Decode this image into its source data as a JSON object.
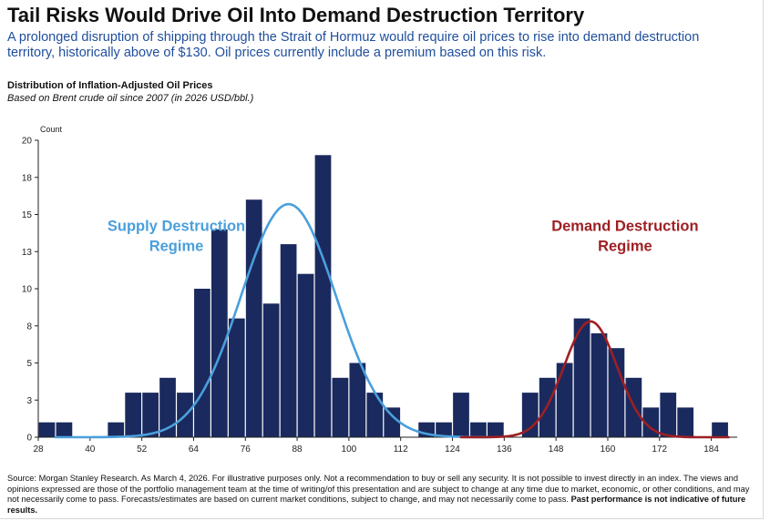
{
  "header": {
    "title": "Tail Risks Would Drive Oil Into Demand Destruction Territory",
    "subtitle": "A prolonged disruption of shipping through the Strait of Hormuz would require oil prices to rise into demand destruction territory, historically above of $130. Oil prices currently include a premium based on this risk."
  },
  "chart_data": {
    "type": "bar",
    "title": "Distribution of Inflation-Adjusted Oil Prices",
    "subtitle": "Based on Brent crude oil since 2007 (in 2026 USD/bbl.)",
    "ylabel": "Count",
    "xlabel": "",
    "ylim": [
      0,
      20
    ],
    "xlim": [
      28,
      190
    ],
    "bin_width": 4,
    "x_ticks": [
      28,
      40,
      52,
      64,
      76,
      88,
      100,
      112,
      124,
      136,
      148,
      160,
      172,
      184
    ],
    "y_ticks": [
      {
        "value": 0,
        "label": "0"
      },
      {
        "value": 2.5,
        "label": "3"
      },
      {
        "value": 5,
        "label": "5"
      },
      {
        "value": 7.5,
        "label": "8"
      },
      {
        "value": 10,
        "label": "10"
      },
      {
        "value": 12.5,
        "label": "13"
      },
      {
        "value": 15,
        "label": "15"
      },
      {
        "value": 17.5,
        "label": "18"
      },
      {
        "value": 20,
        "label": "20"
      }
    ],
    "bins": [
      {
        "start": 28,
        "count": 1
      },
      {
        "start": 32,
        "count": 1
      },
      {
        "start": 44,
        "count": 1
      },
      {
        "start": 48,
        "count": 3
      },
      {
        "start": 52,
        "count": 3
      },
      {
        "start": 56,
        "count": 4
      },
      {
        "start": 60,
        "count": 3
      },
      {
        "start": 64,
        "count": 10
      },
      {
        "start": 68,
        "count": 14
      },
      {
        "start": 72,
        "count": 8
      },
      {
        "start": 76,
        "count": 16
      },
      {
        "start": 80,
        "count": 9
      },
      {
        "start": 84,
        "count": 13
      },
      {
        "start": 88,
        "count": 11
      },
      {
        "start": 92,
        "count": 19
      },
      {
        "start": 96,
        "count": 4
      },
      {
        "start": 100,
        "count": 5
      },
      {
        "start": 104,
        "count": 3
      },
      {
        "start": 108,
        "count": 2
      },
      {
        "start": 116,
        "count": 1
      },
      {
        "start": 120,
        "count": 1
      },
      {
        "start": 124,
        "count": 3
      },
      {
        "start": 128,
        "count": 1
      },
      {
        "start": 132,
        "count": 1
      },
      {
        "start": 140,
        "count": 3
      },
      {
        "start": 144,
        "count": 4
      },
      {
        "start": 148,
        "count": 5
      },
      {
        "start": 152,
        "count": 8
      },
      {
        "start": 156,
        "count": 7
      },
      {
        "start": 160,
        "count": 6
      },
      {
        "start": 164,
        "count": 4
      },
      {
        "start": 168,
        "count": 2
      },
      {
        "start": 172,
        "count": 3
      },
      {
        "start": 176,
        "count": 2
      },
      {
        "start": 184,
        "count": 1
      }
    ],
    "curves": [
      {
        "label_lines": [
          "Supply Destruction",
          "Regime"
        ],
        "color": "#4a9fdc",
        "mean": 86,
        "sd": 11,
        "peak": 15.7,
        "x_range": [
          32,
          132
        ]
      },
      {
        "label_lines": [
          "Demand Destruction",
          "Regime"
        ],
        "color": "#9e1f23",
        "mean": 156,
        "sd": 6.2,
        "peak": 7.8,
        "x_range": [
          126,
          188
        ]
      }
    ],
    "bar_color": "#1a2a5e",
    "grid": false
  },
  "footer": {
    "text": "Source: Morgan Stanley Research. As March 4, 2026. For illustrative purposes only. Not a recommendation to buy or sell any security. It is not possible to invest directly in an index. The views and opinions expressed are those of the portfolio management team at the time of writing/of this presentation and are subject to change at any time due to market, economic, or other conditions, and may not necessarily come to pass.  Forecasts/estimates are based on current market conditions, subject to change, and may not necessarily come to pass.",
    "bold": "Past performance is not indicative of future results."
  }
}
